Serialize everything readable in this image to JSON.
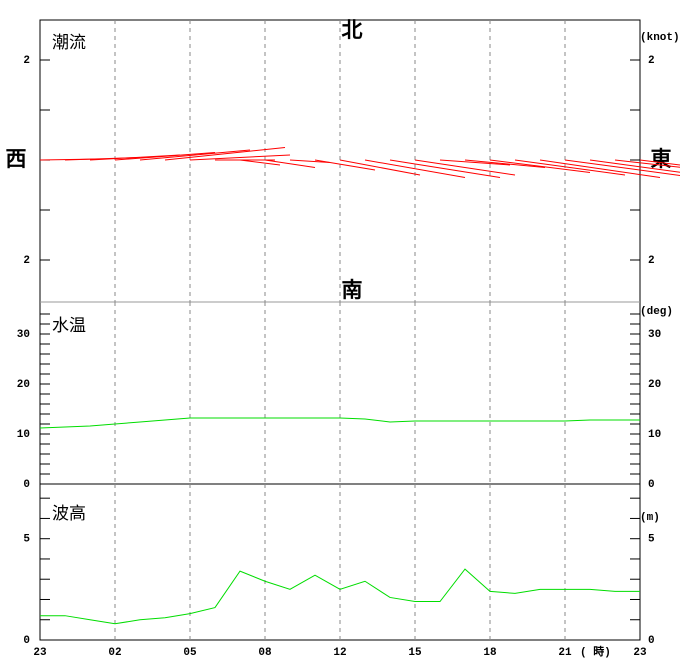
{
  "chart_data": [
    {
      "type": "stick",
      "title": "潮流",
      "unit": "(knot)",
      "directions": {
        "north": "北",
        "south": "南",
        "west": "西",
        "east": "東"
      },
      "x": [
        0,
        1,
        2,
        3,
        4,
        5,
        6,
        7,
        8,
        9,
        10,
        11,
        12,
        13,
        14,
        15,
        16,
        17,
        18,
        19,
        20,
        21,
        22,
        23,
        24
      ],
      "east": [
        1.2,
        1.5,
        1.8,
        2.0,
        2.2,
        2.4,
        2.0,
        1.2,
        0.8,
        1.0,
        0.8,
        1.2,
        1.6,
        2.0,
        2.2,
        2.0,
        1.4,
        1.6,
        2.0,
        2.2,
        2.4,
        2.6,
        2.2,
        1.8,
        0.8
      ],
      "north": [
        0.02,
        0.05,
        0.1,
        0.15,
        0.2,
        0.25,
        0.1,
        0,
        -0.1,
        -0.15,
        -0.05,
        -0.2,
        -0.3,
        -0.35,
        -0.35,
        -0.3,
        -0.1,
        -0.15,
        -0.25,
        -0.3,
        -0.35,
        -0.35,
        -0.3,
        -0.2,
        -0.1
      ],
      "color": "#ff0000",
      "ylim": [
        -2.84,
        2.8
      ],
      "yticks": [
        {
          "value": -2,
          "label": "2"
        },
        2
      ],
      "minor_yticks": [
        -2,
        -1,
        0,
        1,
        2
      ]
    },
    {
      "type": "line",
      "title": "水温",
      "unit": "(deg)",
      "x": [
        0,
        1,
        2,
        3,
        4,
        5,
        6,
        7,
        8,
        9,
        10,
        11,
        12,
        13,
        14,
        15,
        16,
        17,
        18,
        19,
        20,
        21,
        22,
        23,
        24
      ],
      "values": [
        11.2,
        11.4,
        11.6,
        12,
        12.4,
        12.8,
        13.2,
        13.2,
        13.2,
        13.2,
        13.2,
        13.2,
        13.2,
        13,
        12.4,
        12.6,
        12.6,
        12.6,
        12.6,
        12.6,
        12.6,
        12.6,
        12.8,
        12.8,
        12.8
      ],
      "color": "#00dd00",
      "ylim": [
        0,
        36.4
      ],
      "yticks": [
        0,
        10,
        20,
        30
      ],
      "minor_yticks": [
        2,
        4,
        6,
        8,
        12,
        14,
        16,
        18,
        22,
        24,
        26,
        28,
        32,
        34
      ]
    },
    {
      "type": "line",
      "title": "波高",
      "unit": "(m)",
      "x_unit": "( 時)",
      "x": [
        0,
        1,
        2,
        3,
        4,
        5,
        6,
        7,
        8,
        9,
        10,
        11,
        12,
        13,
        14,
        15,
        16,
        17,
        18,
        19,
        20,
        21,
        22,
        23,
        24
      ],
      "values": [
        1.2,
        1.2,
        1.0,
        0.8,
        1.0,
        1.1,
        1.3,
        1.6,
        3.4,
        2.9,
        2.5,
        3.2,
        2.5,
        2.9,
        2.1,
        1.9,
        1.9,
        3.5,
        2.4,
        2.3,
        2.5,
        2.5,
        2.5,
        2.4,
        2.4
      ],
      "color": "#00dd00",
      "ylim": [
        0,
        7.7
      ],
      "yticks": [
        0,
        5
      ],
      "minor_yticks": [
        1,
        2,
        3,
        4,
        6,
        7
      ],
      "xlim": [
        0,
        24
      ],
      "xticks": [
        {
          "value": 0,
          "label": "23"
        },
        {
          "value": 3,
          "label": "02"
        },
        {
          "value": 6,
          "label": "05"
        },
        {
          "value": 9,
          "label": "08"
        },
        12,
        15,
        18,
        21,
        {
          "value": 24,
          "label": "23"
        }
      ]
    }
  ]
}
